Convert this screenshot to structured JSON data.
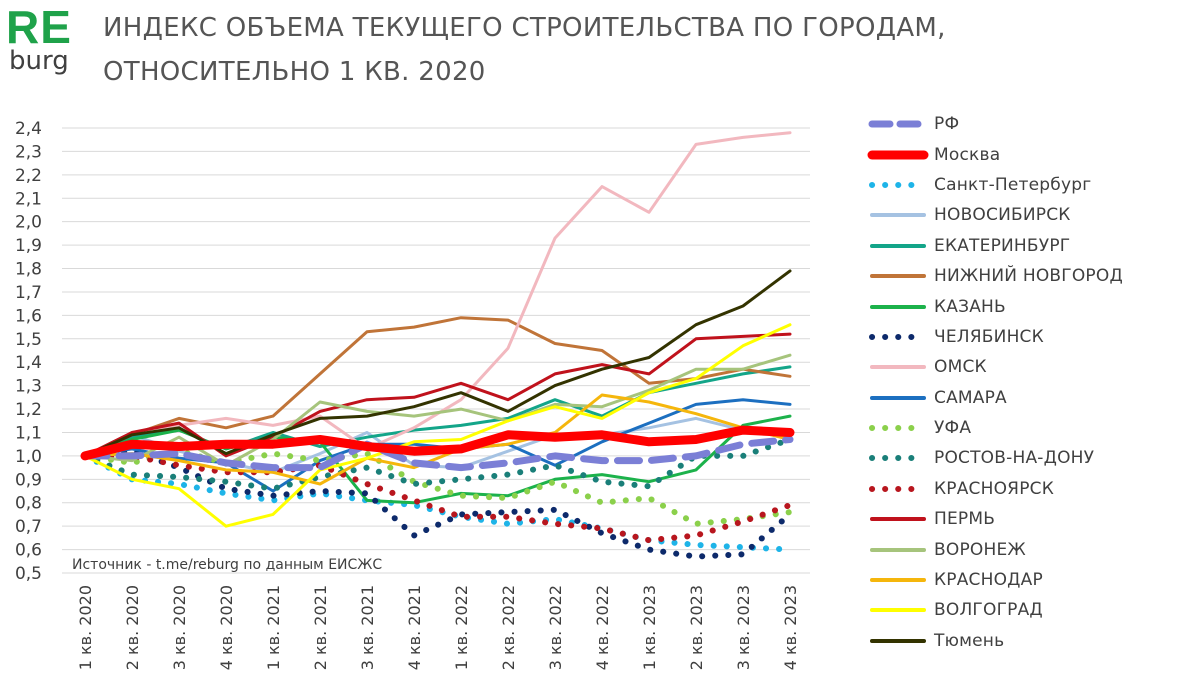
{
  "logo": {
    "re": "RE",
    "burg": "burg"
  },
  "title": {
    "line1": "ИНДЕКС ОБЪЕМА ТЕКУЩЕГО СТРОИТЕЛЬСТВА ПО ГОРОДАМ,",
    "line2": "ОТНОСИТЕЛЬНО 1 КВ. 2020"
  },
  "source_note": "Источник - t.me/reburg по данным ЕИСЖС",
  "chart_data": {
    "type": "line",
    "title": "ИНДЕКС ОБЪЕМА ТЕКУЩЕГО СТРОИТЕЛЬСТВА ПО ГОРОДАМ, ОТНОСИТЕЛЬНО 1 КВ. 2020",
    "xlabel": "",
    "ylabel": "",
    "ylim": [
      0.5,
      2.4
    ],
    "yticks": [
      "0,5",
      "0,6",
      "0,7",
      "0,8",
      "0,9",
      "1,0",
      "1,1",
      "1,2",
      "1,3",
      "1,4",
      "1,5",
      "1,6",
      "1,7",
      "1,8",
      "1,9",
      "2,0",
      "2,1",
      "2,2",
      "2,3",
      "2,4"
    ],
    "grid": true,
    "legend_position": "right",
    "categories": [
      "1 кв. 2020",
      "2 кв. 2020",
      "3 кв. 2020",
      "4 кв. 2020",
      "1 кв. 2021",
      "2 кв. 2021",
      "3 кв. 2021",
      "4 кв. 2021",
      "1 кв. 2022",
      "2 кв. 2022",
      "3 кв. 2022",
      "4 кв. 2022",
      "1 кв. 2023",
      "2 кв. 2023",
      "3 кв. 2023",
      "4 кв. 2023"
    ],
    "series": [
      {
        "name": "РФ",
        "color": "#7b7fd6",
        "style": "dash",
        "width": 7,
        "values": [
          1.0,
          1.0,
          1.01,
          0.97,
          0.95,
          0.95,
          1.05,
          0.97,
          0.95,
          0.97,
          1.0,
          0.98,
          0.98,
          1.0,
          1.05,
          1.07
        ]
      },
      {
        "name": "Москва",
        "color": "#ff0000",
        "style": "solid",
        "width": 9,
        "values": [
          1.0,
          1.05,
          1.04,
          1.05,
          1.05,
          1.07,
          1.04,
          1.02,
          1.03,
          1.09,
          1.08,
          1.09,
          1.06,
          1.07,
          1.11,
          1.1
        ]
      },
      {
        "name": "Санкт-Петербург",
        "color": "#1eb4e8",
        "style": "dot",
        "width": 6,
        "values": [
          1.0,
          0.9,
          0.88,
          0.84,
          0.81,
          0.84,
          0.81,
          0.79,
          0.74,
          0.71,
          0.73,
          0.69,
          0.64,
          0.62,
          0.61,
          0.6
        ]
      },
      {
        "name": "НОВОСИБИРСК",
        "color": "#a5c2e2",
        "style": "solid",
        "width": 3,
        "values": [
          1.0,
          1.09,
          1.02,
          0.97,
          0.93,
          1.01,
          1.1,
          0.96,
          0.95,
          1.02,
          1.09,
          1.09,
          1.12,
          1.16,
          1.11,
          1.08
        ]
      },
      {
        "name": "ЕКАТЕРИНБУРГ",
        "color": "#13a589",
        "style": "solid",
        "width": 3,
        "values": [
          1.0,
          1.08,
          1.11,
          1.03,
          1.1,
          1.04,
          1.08,
          1.11,
          1.13,
          1.16,
          1.24,
          1.17,
          1.27,
          1.31,
          1.35,
          1.38
        ]
      },
      {
        "name": "НИЖНИЙ НОВГОРОД",
        "color": "#c07438",
        "style": "solid",
        "width": 3,
        "values": [
          1.0,
          1.09,
          1.16,
          1.12,
          1.17,
          1.35,
          1.53,
          1.55,
          1.59,
          1.58,
          1.48,
          1.45,
          1.31,
          1.33,
          1.37,
          1.34
        ]
      },
      {
        "name": "КАЗАНЬ",
        "color": "#1cb24b",
        "style": "solid",
        "width": 3,
        "values": [
          1.0,
          1.07,
          1.11,
          1.03,
          1.08,
          1.06,
          0.81,
          0.8,
          0.84,
          0.83,
          0.9,
          0.92,
          0.89,
          0.94,
          1.13,
          1.17
        ]
      },
      {
        "name": "ЧЕЛЯБИНСК",
        "color": "#0d2a6b",
        "style": "dot",
        "width": 6,
        "values": [
          1.0,
          1.02,
          0.95,
          0.86,
          0.83,
          0.85,
          0.84,
          0.66,
          0.75,
          0.76,
          0.77,
          0.67,
          0.6,
          0.57,
          0.58,
          0.75
        ]
      },
      {
        "name": "ОМСК",
        "color": "#f2b8bf",
        "style": "solid",
        "width": 3,
        "values": [
          1.0,
          1.1,
          1.13,
          1.16,
          1.13,
          1.17,
          1.03,
          1.12,
          1.24,
          1.46,
          1.93,
          2.15,
          2.04,
          2.33,
          2.36,
          2.38
        ]
      },
      {
        "name": "САМАРА",
        "color": "#1c6fc0",
        "style": "solid",
        "width": 3,
        "values": [
          1.0,
          1.03,
          0.99,
          0.97,
          0.85,
          0.98,
          1.05,
          1.05,
          1.03,
          1.05,
          0.96,
          1.06,
          1.14,
          1.22,
          1.24,
          1.22
        ]
      },
      {
        "name": "УФА",
        "color": "#8bd04b",
        "style": "dot",
        "width": 6,
        "values": [
          1.0,
          0.97,
          1.02,
          0.97,
          1.01,
          0.98,
          1.01,
          0.89,
          0.83,
          0.82,
          0.89,
          0.8,
          0.82,
          0.71,
          0.73,
          0.76
        ]
      },
      {
        "name": "РОСТОВ-НА-ДОНУ",
        "color": "#1a7f79",
        "style": "dot",
        "width": 6,
        "values": [
          1.0,
          0.92,
          0.91,
          0.89,
          0.86,
          0.91,
          0.95,
          0.88,
          0.9,
          0.92,
          0.96,
          0.89,
          0.87,
          1.0,
          1.0,
          1.07
        ]
      },
      {
        "name": "КРАСНОЯРСК",
        "color": "#b8161e",
        "style": "dot",
        "width": 6,
        "values": [
          1.0,
          1.0,
          0.96,
          0.93,
          0.93,
          0.96,
          0.88,
          0.81,
          0.74,
          0.74,
          0.71,
          0.69,
          0.64,
          0.66,
          0.72,
          0.79
        ]
      },
      {
        "name": "ПЕРМЬ",
        "color": "#c0121c",
        "style": "solid",
        "width": 3,
        "values": [
          1.0,
          1.1,
          1.14,
          1.0,
          1.08,
          1.19,
          1.24,
          1.25,
          1.31,
          1.24,
          1.35,
          1.39,
          1.35,
          1.5,
          1.51,
          1.52
        ]
      },
      {
        "name": "ВОРОНЕЖ",
        "color": "#a6c47c",
        "style": "solid",
        "width": 3,
        "values": [
          1.0,
          0.98,
          1.08,
          0.96,
          1.07,
          1.23,
          1.19,
          1.17,
          1.2,
          1.15,
          1.22,
          1.21,
          1.28,
          1.37,
          1.37,
          1.43
        ]
      },
      {
        "name": "КРАСНОДАР",
        "color": "#f5b60c",
        "style": "solid",
        "width": 3,
        "values": [
          1.0,
          1.01,
          0.98,
          0.94,
          0.93,
          0.88,
          0.99,
          0.95,
          1.03,
          1.05,
          1.1,
          1.26,
          1.23,
          1.18,
          1.12,
          1.07
        ]
      },
      {
        "name": "ВОЛГОГРАД",
        "color": "#ffff00",
        "style": "solid",
        "width": 3,
        "values": [
          1.0,
          0.9,
          0.86,
          0.7,
          0.75,
          0.94,
          0.99,
          1.06,
          1.07,
          1.15,
          1.21,
          1.16,
          1.27,
          1.33,
          1.47,
          1.56
        ]
      },
      {
        "name": "Тюмень",
        "color": "#333300",
        "style": "solid",
        "width": 3,
        "values": [
          1.0,
          1.09,
          1.12,
          1.01,
          1.09,
          1.16,
          1.17,
          1.21,
          1.27,
          1.19,
          1.3,
          1.37,
          1.42,
          1.56,
          1.64,
          1.79
        ]
      }
    ]
  }
}
